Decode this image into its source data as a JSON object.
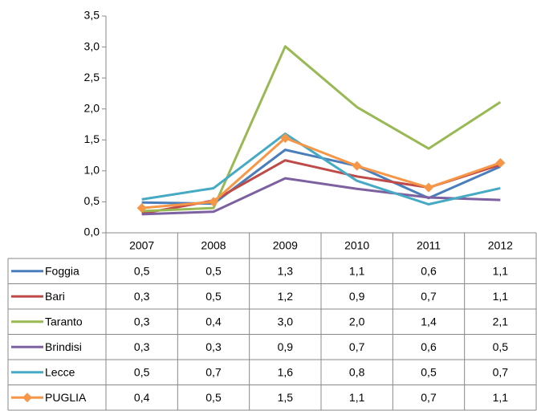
{
  "chart_data": {
    "type": "line",
    "categories": [
      "2007",
      "2008",
      "2009",
      "2010",
      "2011",
      "2012"
    ],
    "ylim": [
      0,
      3.5
    ],
    "yticks": [
      {
        "value": 0,
        "label": "0,0"
      },
      {
        "value": 0.5,
        "label": "0,5"
      },
      {
        "value": 1,
        "label": "1,0"
      },
      {
        "value": 1.5,
        "label": "1,5"
      },
      {
        "value": 2,
        "label": "2,0"
      },
      {
        "value": 2.5,
        "label": "2,5"
      },
      {
        "value": 3,
        "label": "3,0"
      },
      {
        "value": 3.5,
        "label": "3,5"
      }
    ],
    "series": [
      {
        "name": "Foggia",
        "color": "#4a7ebb",
        "values": [
          0.49,
          0.47,
          1.34,
          1.08,
          0.56,
          1.07
        ],
        "value_labels": [
          "0,5",
          "0,5",
          "1,3",
          "1,1",
          "0,6",
          "1,1"
        ]
      },
      {
        "name": "Bari",
        "color": "#be4b48",
        "values": [
          0.31,
          0.52,
          1.17,
          0.91,
          0.73,
          1.1
        ],
        "value_labels": [
          "0,3",
          "0,5",
          "1,2",
          "0,9",
          "0,7",
          "1,1"
        ]
      },
      {
        "name": "Taranto",
        "color": "#98b954",
        "values": [
          0.35,
          0.4,
          3.01,
          2.03,
          1.36,
          2.11
        ],
        "value_labels": [
          "0,3",
          "0,4",
          "3,0",
          "2,0",
          "1,4",
          "2,1"
        ]
      },
      {
        "name": "Brindisi",
        "color": "#7d60a0",
        "values": [
          0.3,
          0.34,
          0.88,
          0.71,
          0.57,
          0.53
        ],
        "value_labels": [
          "0,3",
          "0,3",
          "0,9",
          "0,7",
          "0,6",
          "0,5"
        ]
      },
      {
        "name": "Lecce",
        "color": "#46aac5",
        "values": [
          0.54,
          0.72,
          1.6,
          0.84,
          0.46,
          0.72
        ],
        "value_labels": [
          "0,5",
          "0,7",
          "1,6",
          "0,8",
          "0,5",
          "0,7"
        ]
      },
      {
        "name": "PUGLIA",
        "color": "#f79646",
        "marker": "diamond",
        "values": [
          0.4,
          0.5,
          1.53,
          1.08,
          0.73,
          1.13
        ],
        "value_labels": [
          "0,4",
          "0,5",
          "1,5",
          "1,1",
          "0,7",
          "1,1"
        ]
      }
    ]
  }
}
